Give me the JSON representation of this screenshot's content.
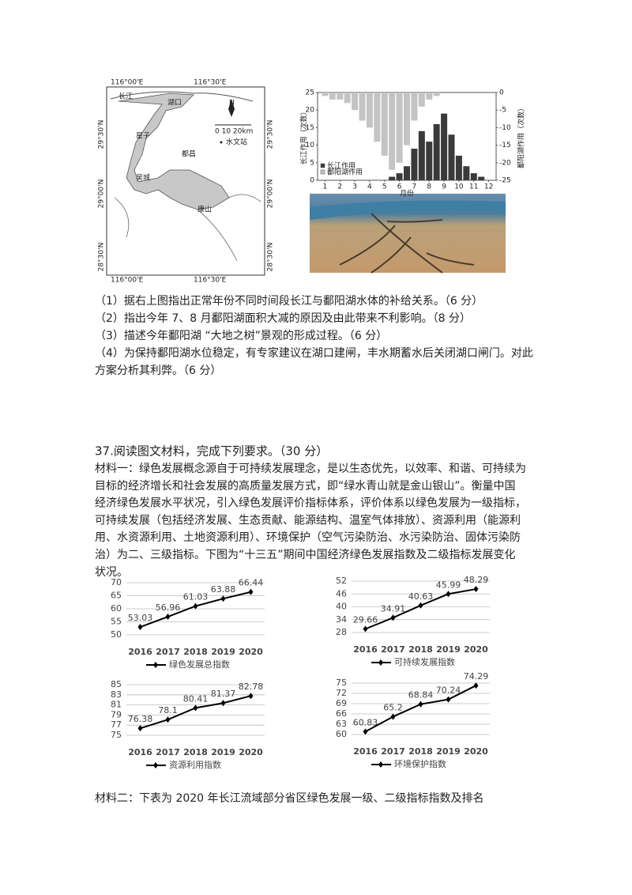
{
  "map": {
    "lon_left": "116°00'E",
    "lon_right": "116°30'E",
    "lat_top": "29°30'N",
    "lat_mid": "29°00'N",
    "lat_bot": "28°30'N",
    "river": "长江",
    "hukou": "湖口",
    "xingzi": "星子",
    "duchang": "都昌",
    "wucheng": "吴城",
    "kangshan": "康山",
    "north": "N",
    "scale": "0  10  20km",
    "station": "水文站"
  },
  "top_chart": {
    "type": "bar",
    "x": [
      1,
      1.5,
      2,
      2.5,
      3,
      3.5,
      4,
      4.5,
      5,
      5.5,
      6,
      6.5,
      7,
      7.5,
      8,
      8.5,
      9,
      9.5,
      10,
      10.5,
      11,
      11.5,
      12
    ],
    "series": [
      {
        "name": "长江作用",
        "color": "#3a3a3a",
        "values": [
          0,
          0,
          0,
          0,
          0,
          0,
          0,
          0,
          0,
          1,
          2,
          4,
          9,
          14,
          11,
          16,
          19,
          13,
          7,
          4,
          2,
          1,
          0
        ]
      },
      {
        "name": "鄱阳湖作用",
        "color": "#c4c4c4",
        "axis": "y2",
        "values": [
          -1,
          -2,
          -2,
          -3,
          -5,
          -8,
          -10,
          -14,
          -18,
          -22,
          -20,
          -15,
          -8,
          -4,
          -2,
          -1,
          0,
          0,
          0,
          0,
          0,
          0,
          0
        ]
      }
    ],
    "xlim": [
      0.5,
      12.5
    ],
    "xticks": [
      1,
      2,
      3,
      4,
      5,
      6,
      7,
      8,
      9,
      10,
      11,
      12
    ],
    "ylim": [
      0,
      25
    ],
    "yticks": [
      0,
      5,
      10,
      15,
      20,
      25
    ],
    "y2lim": [
      -25,
      0
    ],
    "y2ticks": [
      0,
      -5,
      -10,
      -15,
      -20,
      -25
    ],
    "xlabel": "月份",
    "ylabel": "长江作用（次数）",
    "y2label": "鄱阳湖作用（次数）"
  },
  "questions": [
    "（1）据右上图指出正常年份不同时间段长江与鄱阳湖水体的补给关系。（6 分）",
    "（2）指出今年 7、8 月鄱阳湖面积大减的原因及由此带来不利影响。（8 分）",
    "（3）描述今年鄱阳湖 “大地之树”景观的形成过程。（6 分）",
    "（4）为保持鄱阳湖水位稳定，有专家建议在湖口建闸，丰水期蓄水后关闭湖口闸门。对此",
    "方案分析其利弊。（6 分）"
  ],
  "section37": {
    "heading": "37.阅读图文材料，完成下列要求。（30 分）",
    "material1": [
      "材料一：绿色发展概念源自于可持续发展理念，是以生态优先，以效率、和谐、可持续为",
      "目标的经济增长和社会发展的高质量发展方式，即“绿水青山就是金山银山”。衡量中国",
      "经济绿色发展水平状况，引入绿色发展评价指标体系，评价体系以绿色发展为一级指标，",
      "可持续发展（包括经济发展、生态贡献、能源结构、温室气体排放）、资源利用（能源利",
      "用、水资源利用、土地资源利用）、环境保护（空气污染防治、水污染防治、固体污染防",
      "治）为二、三级指标。下图为“十三五”期间中国经济绿色发展指数及二级指标发展变化",
      "状况。"
    ],
    "charts": [
      {
        "type": "line",
        "categories": [
          "2016",
          "2017",
          "2018",
          "2019",
          "2020"
        ],
        "series": [
          {
            "name": "绿色发展总指数",
            "color": "#000000",
            "values": [
              53.03,
              56.96,
              61.03,
              63.88,
              66.44
            ]
          }
        ],
        "ylim": [
          50,
          70
        ],
        "yticks": [
          50,
          55,
          60,
          65,
          70
        ],
        "grid": true
      },
      {
        "type": "line",
        "categories": [
          "2016",
          "2017",
          "2018",
          "2019",
          "2020"
        ],
        "series": [
          {
            "name": "可持续发展指数",
            "color": "#000000",
            "values": [
              29.66,
              34.91,
              40.63,
              45.99,
              48.29
            ]
          }
        ],
        "ylim": [
          28,
          52
        ],
        "yticks": [
          28,
          34,
          40,
          46,
          52
        ],
        "grid": true
      },
      {
        "type": "line",
        "categories": [
          "2016",
          "2017",
          "2018",
          "2019",
          "2020"
        ],
        "series": [
          {
            "name": "资源利用指数",
            "color": "#000000",
            "values": [
              76.38,
              78.1,
              80.41,
              81.37,
              82.78
            ]
          }
        ],
        "ylim": [
          75,
          85
        ],
        "yticks": [
          75,
          77,
          79,
          81,
          83,
          85
        ],
        "grid": true
      },
      {
        "type": "line",
        "categories": [
          "2016",
          "2017",
          "2018",
          "2019",
          "2020"
        ],
        "series": [
          {
            "name": "环境保护指数",
            "color": "#000000",
            "values": [
              60.83,
              65.2,
              68.84,
              70.24,
              74.29
            ]
          }
        ],
        "ylim": [
          60,
          75
        ],
        "yticks": [
          60,
          63,
          66,
          69,
          72,
          75
        ],
        "grid": true
      }
    ],
    "material2": "材料二：下表为 2020 年长江流域部分省区绿色发展一级、二级指标指数及排名"
  }
}
